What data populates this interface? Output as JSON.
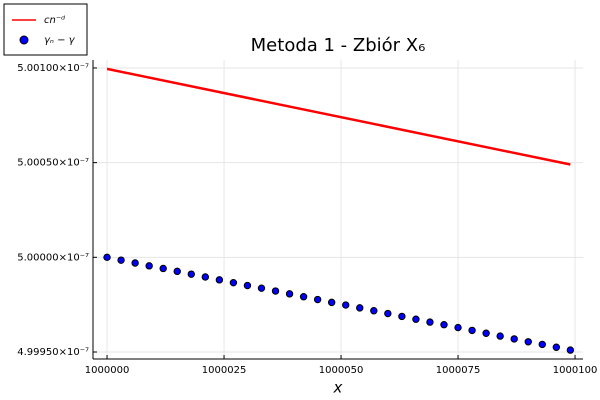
{
  "chart_data": {
    "type": "line",
    "title": "Metoda 1 - Zbiór X₆",
    "x_label": "x",
    "xlim": [
      999997,
      1000101.7
    ],
    "ylim": [
      4.999463e-07,
      5.001042e-07
    ],
    "xticks": [
      1000000,
      1000025,
      1000050,
      1000075,
      1000100
    ],
    "yticks": [
      {
        "value": 4.9995e-07,
        "label": "4.99950×10⁻⁷"
      },
      {
        "value": 5e-07,
        "label": "5.00000×10⁻⁷"
      },
      {
        "value": 5.0005e-07,
        "label": "5.00050×10⁻⁷"
      },
      {
        "value": 5.001e-07,
        "label": "5.00100×10⁻⁷"
      }
    ],
    "grid": true,
    "legend": "top-left",
    "series": [
      {
        "name": "cn⁻ᵈ",
        "type": "line",
        "color": "#ff0000",
        "x": [
          1000000,
          1000099
        ],
        "values": [
          5.000995e-07,
          5.00049e-07
        ]
      },
      {
        "name": "γₙ − γ",
        "type": "scatter",
        "color": "#0000ff",
        "x": [
          1000000,
          1000003,
          1000006,
          1000009,
          1000012,
          1000015,
          1000018,
          1000021,
          1000024,
          1000027,
          1000030,
          1000033,
          1000036,
          1000039,
          1000042,
          1000045,
          1000048,
          1000051,
          1000054,
          1000057,
          1000060,
          1000063,
          1000066,
          1000069,
          1000072,
          1000075,
          1000078,
          1000081,
          1000084,
          1000087,
          1000090,
          1000093,
          1000096,
          1000099
        ],
        "values": [
          5e-07,
          4.999985e-07,
          4.99997e-07,
          4.999955e-07,
          4.999941e-07,
          4.999926e-07,
          4.999911e-07,
          4.999896e-07,
          4.999881e-07,
          4.999866e-07,
          4.999851e-07,
          4.999837e-07,
          4.999822e-07,
          4.999807e-07,
          4.999792e-07,
          4.999777e-07,
          4.999762e-07,
          4.999748e-07,
          4.999733e-07,
          4.999718e-07,
          4.999703e-07,
          4.999688e-07,
          4.999673e-07,
          4.999658e-07,
          4.999644e-07,
          4.999629e-07,
          4.999614e-07,
          4.999599e-07,
          4.999584e-07,
          4.999569e-07,
          4.999554e-07,
          4.99954e-07,
          4.999525e-07,
          4.99951e-07
        ]
      }
    ]
  }
}
